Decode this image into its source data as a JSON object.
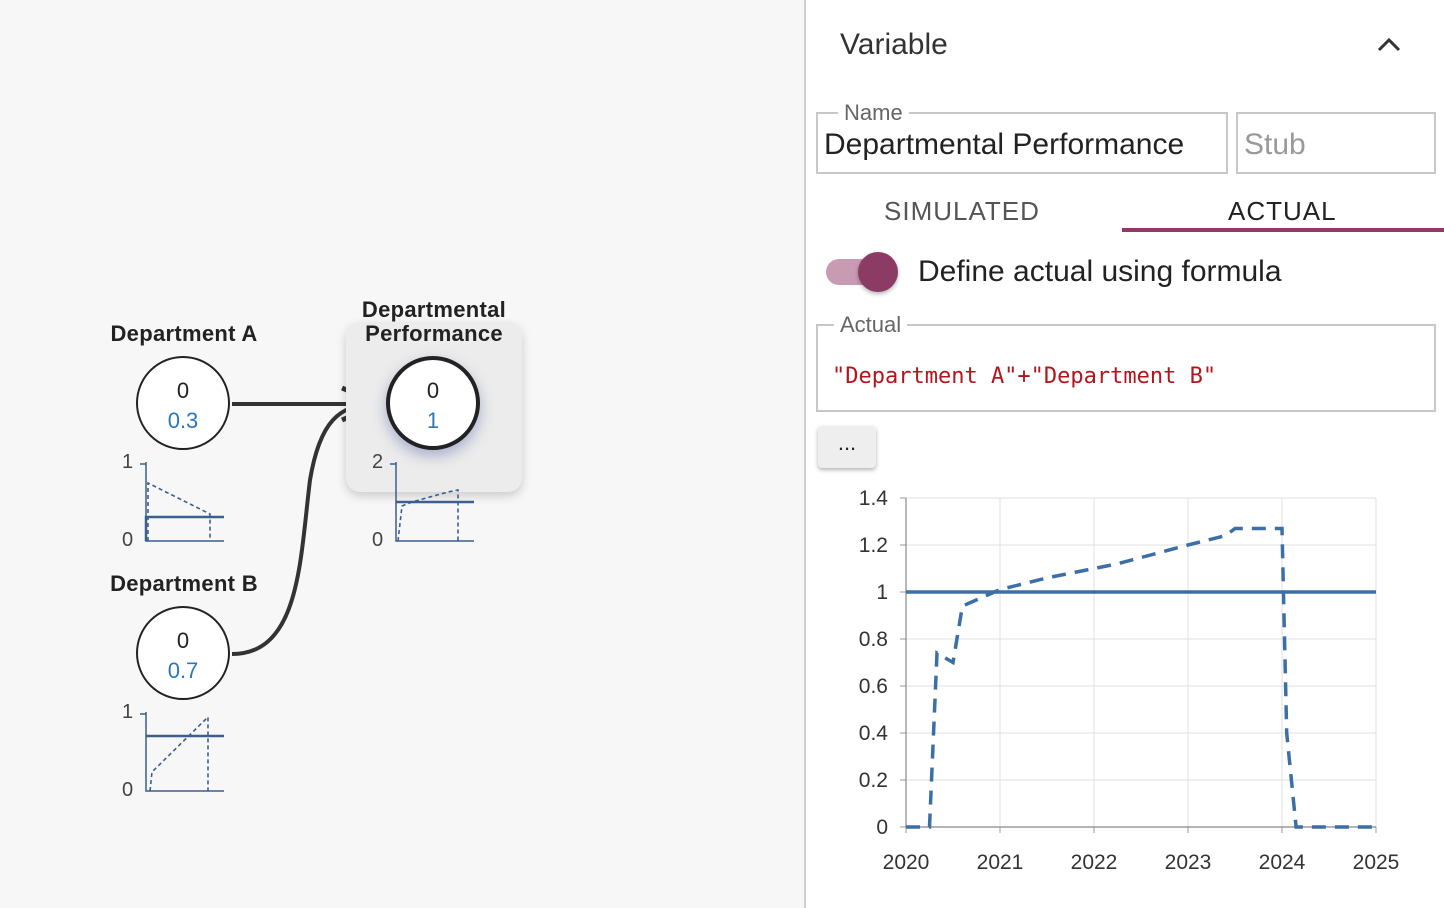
{
  "nodes": {
    "dept_a": {
      "label": "Department A",
      "value": "0",
      "actual": "0.3",
      "spark_ymax": "1",
      "spark_ymin": "0"
    },
    "dept_b": {
      "label": "Department B",
      "value": "0",
      "actual": "0.7",
      "spark_ymax": "1",
      "spark_ymin": "0"
    },
    "perf": {
      "label_line1": "Departmental",
      "label_line2": "Performance",
      "value": "0",
      "actual": "1",
      "spark_ymax": "2",
      "spark_ymin": "0"
    }
  },
  "panel": {
    "title": "Variable",
    "name_legend": "Name",
    "name_value": "Departmental Performance",
    "stub_placeholder": "Stub",
    "tabs": [
      "SIMULATED",
      "ACTUAL"
    ],
    "active_tab": "ACTUAL",
    "toggle_label": "Define actual using formula",
    "toggle_on": true,
    "actual_legend": "Actual",
    "formula": "\"Department A\"+\"Department B\"",
    "more_button": "...",
    "accent_color": "#8c3b64"
  },
  "chart_data": {
    "type": "line",
    "x_ticks": [
      "2020",
      "2021",
      "2022",
      "2023",
      "2024",
      "2025"
    ],
    "y_ticks": [
      "0",
      "0.2",
      "0.4",
      "0.6",
      "0.8",
      "1",
      "1.2",
      "1.4"
    ],
    "xlim": [
      2020,
      2025
    ],
    "ylim": [
      0,
      1.4
    ],
    "grid": true,
    "series": [
      {
        "style": "solid",
        "color": "#3c6fa6",
        "x": [
          2020,
          2025
        ],
        "y": [
          1,
          1
        ]
      },
      {
        "style": "dashed",
        "color": "#3c6fa6",
        "x": [
          2020,
          2020.25,
          2020.33,
          2020.5,
          2020.6,
          2021,
          2021.5,
          2022,
          2022.25,
          2023,
          2023.4,
          2023.5,
          2023.8,
          2024,
          2024.05,
          2024.15,
          2025
        ],
        "y": [
          0,
          0,
          0.74,
          0.7,
          0.94,
          1.01,
          1.06,
          1.1,
          1.12,
          1.2,
          1.24,
          1.27,
          1.27,
          1.27,
          0.4,
          0,
          0
        ]
      }
    ]
  }
}
